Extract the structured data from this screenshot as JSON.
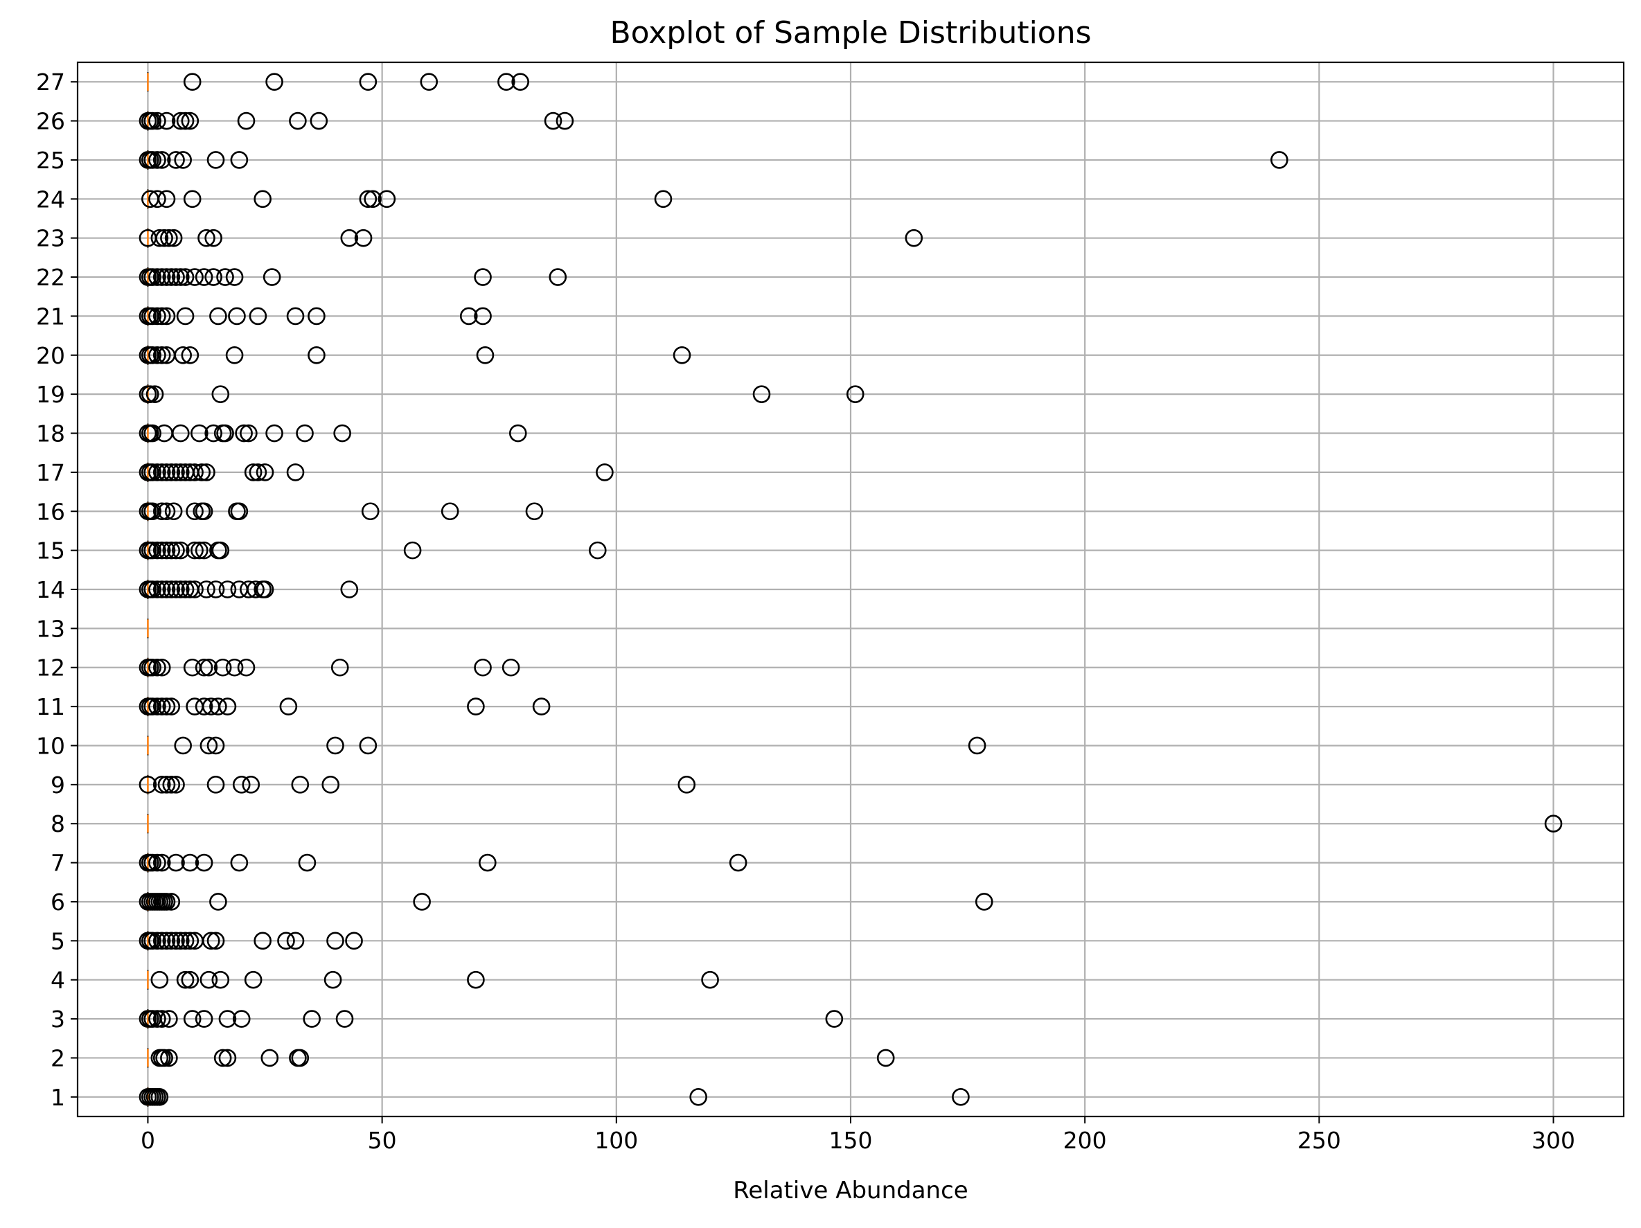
{
  "chart_data": {
    "type": "boxplot",
    "orientation": "horizontal",
    "title": "Boxplot of Sample Distributions",
    "xlabel": "Relative Abundance",
    "ylabel": "",
    "xlim": [
      -15,
      315
    ],
    "ylim": [
      0.5,
      27.5
    ],
    "xticks": [
      0,
      50,
      100,
      150,
      200,
      250,
      300
    ],
    "yticks": [
      1,
      2,
      3,
      4,
      5,
      6,
      7,
      8,
      9,
      10,
      11,
      12,
      13,
      14,
      15,
      16,
      17,
      18,
      19,
      20,
      21,
      22,
      23,
      24,
      25,
      26,
      27
    ],
    "grid": true,
    "median_color": "#ff7f0e",
    "box_color": "#000000",
    "flier_color": "#000000",
    "samples": [
      {
        "label": "1",
        "median": 0,
        "fliers": [
          0,
          0.5,
          1,
          1.5,
          2,
          2.5,
          117.5,
          173.5
        ]
      },
      {
        "label": "2",
        "median": 0,
        "fliers": [
          2.5,
          3,
          3.5,
          4.5,
          16,
          17,
          26,
          32,
          32.5,
          157.5
        ]
      },
      {
        "label": "3",
        "median": 0,
        "fliers": [
          0,
          0.5,
          1,
          2,
          3,
          4.5,
          9.5,
          12,
          17,
          20,
          35,
          42,
          146.5
        ]
      },
      {
        "label": "4",
        "median": 0,
        "fliers": [
          2.5,
          8,
          9,
          13,
          15.5,
          22.5,
          39.5,
          70,
          120
        ]
      },
      {
        "label": "5",
        "median": 0,
        "fliers": [
          0,
          0.5,
          1,
          2,
          3,
          4,
          5,
          6,
          7,
          8,
          9,
          10,
          13.5,
          14.5,
          24.5,
          29.5,
          31.5,
          40,
          44
        ]
      },
      {
        "label": "6",
        "median": 0,
        "fliers": [
          0,
          0.5,
          1,
          1.5,
          2,
          2.5,
          3,
          3.5,
          4,
          5,
          15,
          58.5,
          178.5
        ]
      },
      {
        "label": "7",
        "median": 0,
        "fliers": [
          0,
          0.5,
          1,
          2,
          3,
          6,
          9,
          12,
          19.5,
          34,
          72.5,
          126
        ]
      },
      {
        "label": "8",
        "median": 0,
        "fliers": [
          300
        ]
      },
      {
        "label": "9",
        "median": 0,
        "fliers": [
          0,
          3,
          4,
          5,
          6,
          14.5,
          20,
          22,
          32.5,
          39,
          115
        ]
      },
      {
        "label": "10",
        "median": 0,
        "fliers": [
          7.5,
          13,
          14.5,
          40,
          47,
          177
        ]
      },
      {
        "label": "11",
        "median": 0,
        "fliers": [
          0,
          0.5,
          1,
          2,
          3,
          4,
          5,
          10,
          12,
          13.5,
          15,
          17,
          30,
          70,
          84
        ]
      },
      {
        "label": "12",
        "median": 0,
        "fliers": [
          0,
          0.5,
          1,
          2,
          3,
          9.5,
          12,
          13,
          16,
          18.5,
          21,
          41,
          71.5,
          77.5
        ]
      },
      {
        "label": "13",
        "median": 0,
        "fliers": []
      },
      {
        "label": "14",
        "median": 0,
        "fliers": [
          0,
          0.5,
          1,
          2,
          3,
          4,
          5,
          6,
          7,
          8,
          9,
          10,
          12.5,
          14.5,
          17,
          19.5,
          21.5,
          23,
          24.5,
          25,
          43
        ]
      },
      {
        "label": "15",
        "median": 0,
        "fliers": [
          0,
          0.5,
          1,
          2,
          3,
          4,
          5,
          6,
          7,
          10,
          11,
          12,
          15,
          15.5,
          56.5,
          96
        ]
      },
      {
        "label": "16",
        "median": 0,
        "fliers": [
          0,
          0.5,
          1,
          3,
          4,
          5.5,
          10,
          11.5,
          12,
          19,
          19.5,
          47.5,
          64.5,
          82.5
        ]
      },
      {
        "label": "17",
        "median": 0,
        "fliers": [
          0,
          0.5,
          1,
          2,
          3,
          4,
          5,
          6,
          7,
          8,
          9,
          10,
          11.5,
          12.5,
          22.5,
          23.5,
          25,
          31.5,
          97.5
        ]
      },
      {
        "label": "18",
        "median": 0,
        "fliers": [
          0,
          0.5,
          1,
          3.5,
          7,
          11,
          14,
          16,
          16.5,
          20.5,
          21.5,
          27,
          33.5,
          41.5,
          79
        ]
      },
      {
        "label": "19",
        "median": 0,
        "fliers": [
          0,
          0.5,
          1.5,
          15.5,
          131,
          151
        ]
      },
      {
        "label": "20",
        "median": 0,
        "fliers": [
          0,
          0.5,
          1,
          2,
          3,
          4,
          7.5,
          9,
          18.5,
          36,
          72,
          114
        ]
      },
      {
        "label": "21",
        "median": 0,
        "fliers": [
          0,
          0.5,
          1,
          2,
          3,
          4,
          8,
          15,
          19,
          23.5,
          31.5,
          36,
          68.5,
          71.5
        ]
      },
      {
        "label": "22",
        "median": 0,
        "fliers": [
          0,
          0.5,
          1,
          2,
          3,
          4,
          5,
          6,
          7,
          8,
          10,
          12,
          14,
          16.5,
          18.5,
          26.5,
          71.5,
          87.5
        ]
      },
      {
        "label": "23",
        "median": 0,
        "fliers": [
          0,
          2.5,
          3.5,
          4.5,
          5.5,
          12.5,
          14,
          43,
          46,
          163.5
        ]
      },
      {
        "label": "24",
        "median": 0,
        "fliers": [
          0.5,
          2,
          4,
          9.5,
          24.5,
          47,
          48,
          51,
          110
        ]
      },
      {
        "label": "25",
        "median": 0,
        "fliers": [
          0,
          0.5,
          1,
          2,
          3,
          6,
          7.5,
          14.5,
          19.5,
          241.5
        ]
      },
      {
        "label": "26",
        "median": 0,
        "fliers": [
          0,
          0.5,
          1,
          2,
          4,
          7,
          8,
          9,
          21,
          32,
          36.5,
          86.5,
          89
        ]
      },
      {
        "label": "27",
        "median": 0,
        "fliers": [
          9.5,
          27,
          47,
          60,
          76.5,
          79.5
        ]
      }
    ]
  }
}
